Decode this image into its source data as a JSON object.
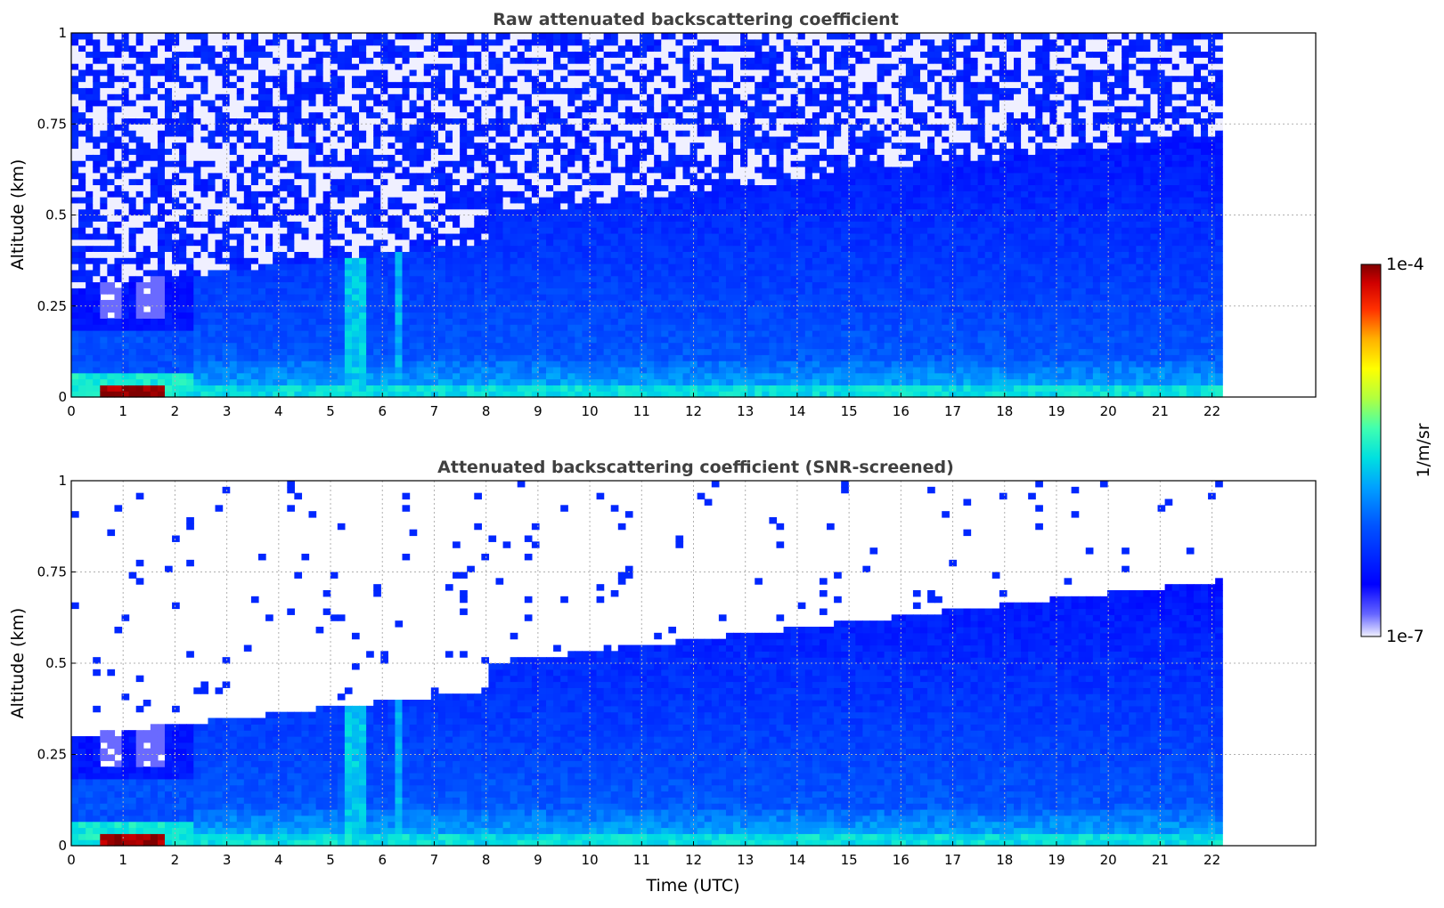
{
  "chart_data": [
    {
      "type": "heatmap",
      "title": "Raw attenuated backscattering coefficient",
      "xlabel": "",
      "ylabel": "Altitude (km)",
      "xlim": [
        0,
        24
      ],
      "ylim": [
        0,
        1
      ],
      "x_ticks": [
        "0",
        "1",
        "2",
        "3",
        "4",
        "5",
        "6",
        "7",
        "8",
        "9",
        "10",
        "11",
        "12",
        "13",
        "14",
        "15",
        "16",
        "17",
        "18",
        "19",
        "20",
        "21",
        "22"
      ],
      "y_ticks": [
        "0",
        "0.25",
        "0.5",
        "0.75",
        "1"
      ],
      "grid": true,
      "data_end_hour": 22.2,
      "screened": false
    },
    {
      "type": "heatmap",
      "title": "Attenuated backscattering coefficient (SNR-screened)",
      "xlabel": "Time (UTC)",
      "ylabel": "Altitude (km)",
      "xlim": [
        0,
        24
      ],
      "ylim": [
        0,
        1
      ],
      "x_ticks": [
        "0",
        "1",
        "2",
        "3",
        "4",
        "5",
        "6",
        "7",
        "8",
        "9",
        "10",
        "11",
        "12",
        "13",
        "14",
        "15",
        "16",
        "17",
        "18",
        "19",
        "20",
        "21",
        "22"
      ],
      "y_ticks": [
        "0",
        "0.25",
        "0.5",
        "0.75",
        "1"
      ],
      "grid": true,
      "data_end_hour": 22.2,
      "screened": true
    }
  ],
  "colorbar": {
    "label": "1/m/sr",
    "min_label": "1e-7",
    "max_label": "1e-4",
    "scale": "log",
    "colormap": "jet"
  }
}
